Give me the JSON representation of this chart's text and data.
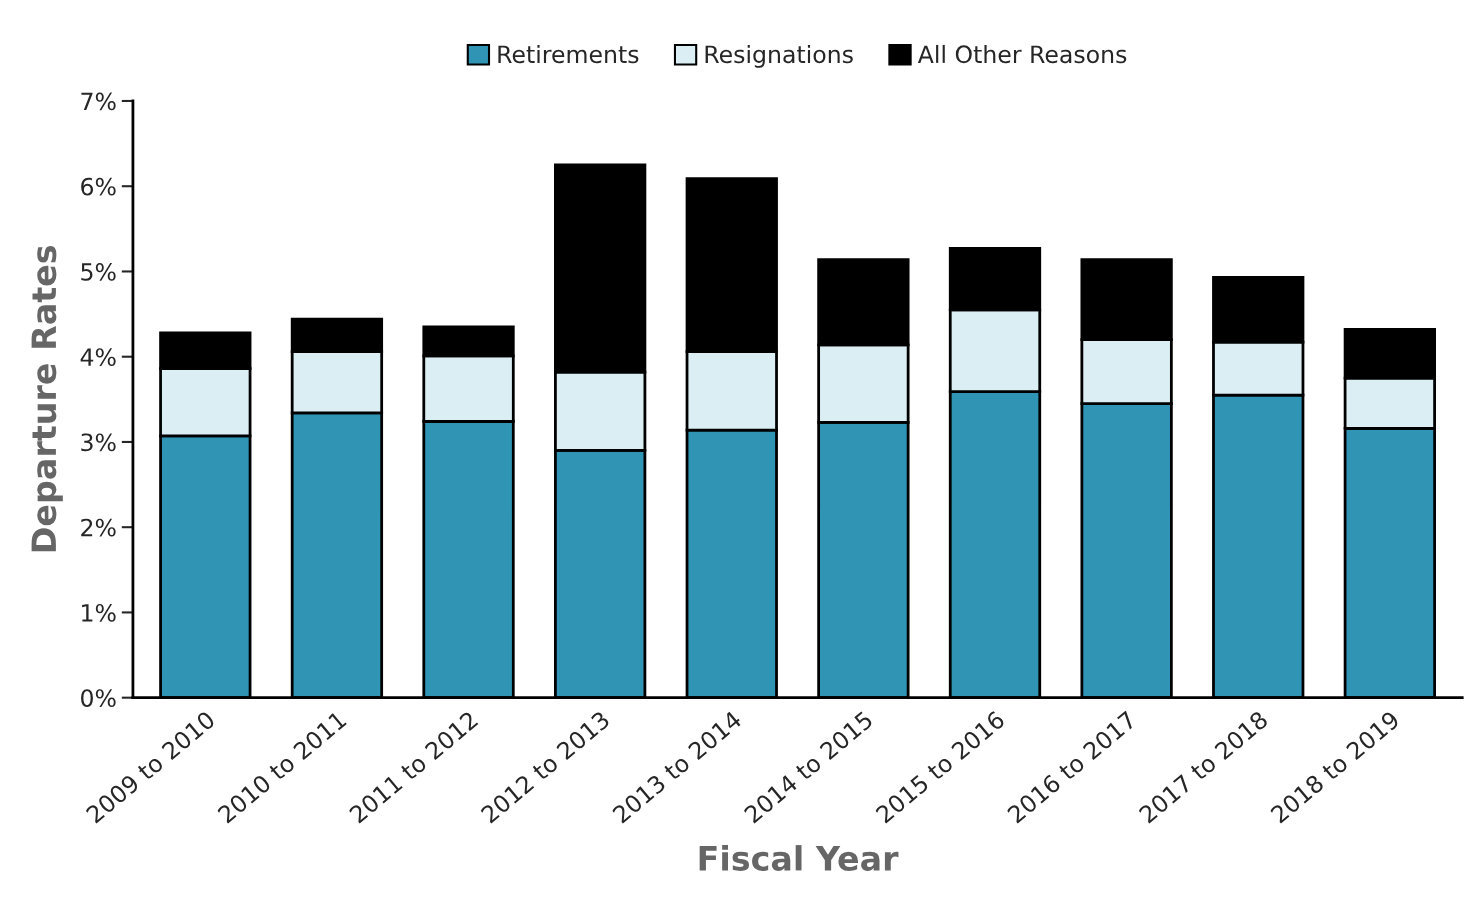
{
  "chart_data": {
    "type": "bar",
    "stacked": true,
    "categories": [
      "2009 to 2010",
      "2010 to 2011",
      "2011 to 2012",
      "2012 to 2013",
      "2013 to 2014",
      "2014 to 2015",
      "2015 to 2016",
      "2016 to 2017",
      "2017 to 2018",
      "2018 to 2019"
    ],
    "series": [
      {
        "name": "Retirements",
        "color": "#3094b4",
        "values": [
          3.07,
          3.34,
          3.24,
          2.9,
          3.14,
          3.23,
          3.59,
          3.45,
          3.55,
          3.16
        ]
      },
      {
        "name": "Resignations",
        "color": "#dbeef4",
        "values": [
          0.79,
          0.72,
          0.77,
          0.92,
          0.92,
          0.91,
          0.96,
          0.75,
          0.62,
          0.59
        ]
      },
      {
        "name": "All Other Reasons",
        "color": "#000000",
        "values": [
          0.42,
          0.38,
          0.34,
          2.43,
          2.03,
          1.0,
          0.72,
          0.94,
          0.76,
          0.57
        ]
      }
    ],
    "xlabel": "Fiscal Year",
    "ylabel": "Departure Rates",
    "ylim": [
      0,
      7
    ],
    "yticks": [
      {
        "value": 0,
        "label": "0%"
      },
      {
        "value": 1,
        "label": "1%"
      },
      {
        "value": 2,
        "label": "2%"
      },
      {
        "value": 3,
        "label": "3%"
      },
      {
        "value": 4,
        "label": "4%"
      },
      {
        "value": 5,
        "label": "5%"
      },
      {
        "value": 6,
        "label": "6%"
      },
      {
        "value": 7,
        "label": "7%"
      }
    ],
    "grid": false,
    "legend": "top"
  }
}
